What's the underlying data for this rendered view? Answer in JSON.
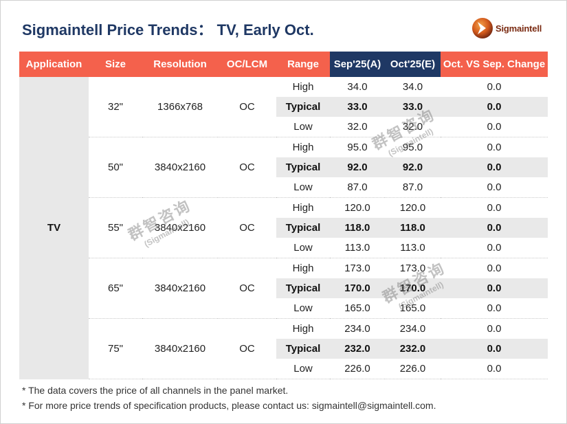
{
  "title": "Sigmaintell Price Trends： TV, Early Oct.",
  "logo": {
    "text": "Sigmaintell",
    "icon": "sigmaintell-logo-icon",
    "brand_color": "#7a2b12",
    "accent": "#e8791f"
  },
  "colors": {
    "header_bg": "#f4614c",
    "header_highlight_bg": "#1f3864",
    "title": "#1f3864",
    "typical_row_bg": "#e9e9e9"
  },
  "table": {
    "headers": {
      "application": "Application",
      "size": "Size",
      "resolution": "Resolution",
      "panel": "OC/LCM",
      "range": "Range",
      "sep": "Sep'25(A)",
      "oct": "Oct'25(E)",
      "change": "Oct. VS Sep. Change"
    },
    "application": "TV",
    "groups": [
      {
        "size": "32\"",
        "resolution": "1366x768",
        "panel": "OC",
        "rows": [
          {
            "range": "High",
            "sep": "34.0",
            "oct": "34.0",
            "change": "0.0"
          },
          {
            "range": "Typical",
            "sep": "33.0",
            "oct": "33.0",
            "change": "0.0"
          },
          {
            "range": "Low",
            "sep": "32.0",
            "oct": "32.0",
            "change": "0.0"
          }
        ]
      },
      {
        "size": "50\"",
        "resolution": "3840x2160",
        "panel": "OC",
        "rows": [
          {
            "range": "High",
            "sep": "95.0",
            "oct": "95.0",
            "change": "0.0"
          },
          {
            "range": "Typical",
            "sep": "92.0",
            "oct": "92.0",
            "change": "0.0"
          },
          {
            "range": "Low",
            "sep": "87.0",
            "oct": "87.0",
            "change": "0.0"
          }
        ]
      },
      {
        "size": "55\"",
        "resolution": "3840x2160",
        "panel": "OC",
        "rows": [
          {
            "range": "High",
            "sep": "120.0",
            "oct": "120.0",
            "change": "0.0"
          },
          {
            "range": "Typical",
            "sep": "118.0",
            "oct": "118.0",
            "change": "0.0"
          },
          {
            "range": "Low",
            "sep": "113.0",
            "oct": "113.0",
            "change": "0.0"
          }
        ]
      },
      {
        "size": "65\"",
        "resolution": "3840x2160",
        "panel": "OC",
        "rows": [
          {
            "range": "High",
            "sep": "173.0",
            "oct": "173.0",
            "change": "0.0"
          },
          {
            "range": "Typical",
            "sep": "170.0",
            "oct": "170.0",
            "change": "0.0"
          },
          {
            "range": "Low",
            "sep": "165.0",
            "oct": "165.0",
            "change": "0.0"
          }
        ]
      },
      {
        "size": "75\"",
        "resolution": "3840x2160",
        "panel": "OC",
        "rows": [
          {
            "range": "High",
            "sep": "234.0",
            "oct": "234.0",
            "change": "0.0"
          },
          {
            "range": "Typical",
            "sep": "232.0",
            "oct": "232.0",
            "change": "0.0"
          },
          {
            "range": "Low",
            "sep": "226.0",
            "oct": "226.0",
            "change": "0.0"
          }
        ]
      }
    ]
  },
  "notes": [
    "* The data covers the price of all channels in the panel market.",
    "* For more price trends of specification products, please contact us: sigmaintell@sigmaintell.com."
  ],
  "watermark": {
    "line1": "群智咨询",
    "line2": "(Sigmaintell)"
  }
}
